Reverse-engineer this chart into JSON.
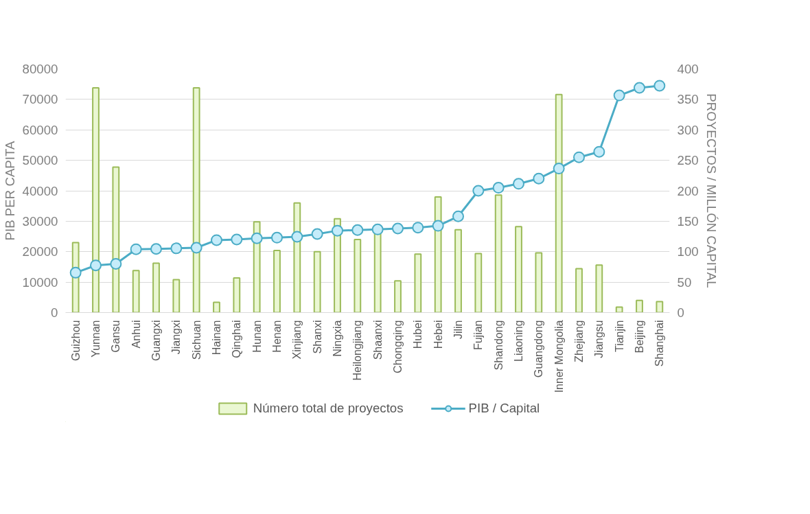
{
  "chart_data": {
    "type": "bar",
    "ylabel": "PIB PER CAPITA",
    "y2label": "PROYECTOS / MILLÓN CAPITAL",
    "categories": [
      "Guizhou",
      "Yunnan",
      "Gansu",
      "Anhui",
      "Guangxi",
      "Jiangxi",
      "Sichuan",
      "Hainan",
      "Qinghai",
      "Hunan",
      "Henan",
      "Xinjiang",
      "Shanxi",
      "Ningxia",
      "Heilongjiang",
      "Shaanxi",
      "Chongqing",
      "Hubei",
      "Hebei",
      "Jilin",
      "Fujian",
      "Shandong",
      "Liaoning",
      "Guangdong",
      "Inner Mongolia",
      "Zhejiang",
      "Jiangsu",
      "Tianjin",
      "Beijing",
      "Shanghai"
    ],
    "series": [
      {
        "name": "Número total de proyectos",
        "axis": "y2",
        "color": "#9bbb59",
        "values": [
          115,
          369,
          239,
          69,
          81,
          54,
          369,
          17,
          57,
          149,
          102,
          180,
          100,
          154,
          120,
          134,
          52,
          96,
          190,
          136,
          97,
          193,
          141,
          98,
          358,
          72,
          78,
          9,
          20,
          18
        ]
      },
      {
        "name": "PIB / Capital",
        "type": "line",
        "axis": "y",
        "color": "#4bacc6",
        "values": [
          13100,
          15500,
          16000,
          20800,
          20900,
          21100,
          21300,
          23800,
          24000,
          24400,
          24600,
          24900,
          25800,
          26900,
          27100,
          27300,
          27600,
          27900,
          28500,
          31600,
          40000,
          41000,
          42300,
          44000,
          47300,
          51000,
          52800,
          71300,
          73800,
          74500
        ]
      }
    ],
    "ylim": [
      0,
      80000
    ],
    "yticks": [
      0,
      10000,
      20000,
      30000,
      40000,
      50000,
      60000,
      70000,
      80000
    ],
    "y2lim": [
      0,
      400
    ],
    "y2ticks": [
      0,
      50,
      100,
      150,
      200,
      250,
      300,
      350,
      400
    ],
    "grid": "y",
    "legend": "bottom",
    "marker": "circle"
  }
}
